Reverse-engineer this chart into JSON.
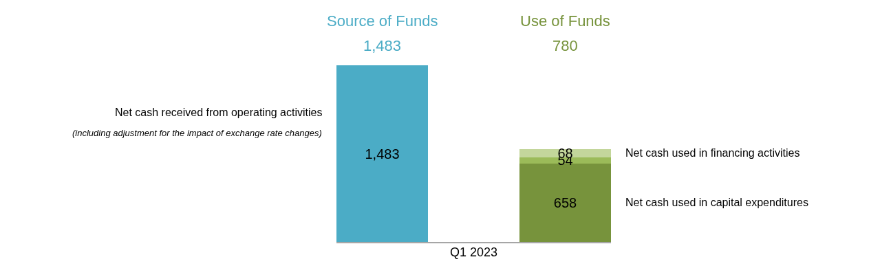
{
  "chart_data": {
    "type": "bar",
    "stacked": true,
    "categories": [
      "Source of Funds",
      "Use of Funds"
    ],
    "xlabel": "Q1 2023",
    "legend": false,
    "series": [
      {
        "name": "Net cash received from operating activities",
        "color": "#4bacc6",
        "values": [
          1483,
          null
        ],
        "value_labels": [
          "1,483",
          null
        ]
      },
      {
        "name": "Net cash used in capital expenditures",
        "color": "#77933c",
        "values": [
          null,
          658
        ],
        "value_labels": [
          null,
          "658"
        ]
      },
      {
        "color": "#9bbb59",
        "values": [
          null,
          54
        ],
        "value_labels": [
          null,
          "54"
        ]
      },
      {
        "name": "Net cash used in financing activities",
        "color": "#c3d69b",
        "values": [
          null,
          68
        ],
        "value_labels": [
          null,
          "68"
        ]
      }
    ],
    "annotations": [
      "(including adjustment for the impact of exchange rate changes)",
      "1,483",
      "780"
    ]
  }
}
